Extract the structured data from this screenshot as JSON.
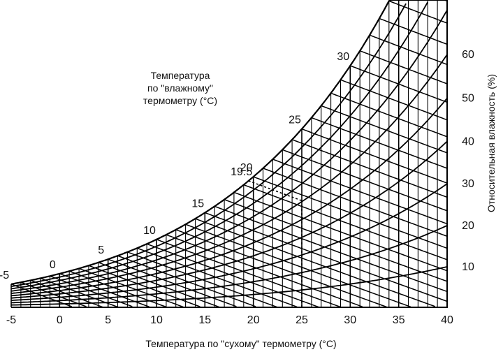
{
  "chart_data": {
    "type": "psychrometric",
    "title": "",
    "xlabel": "Температура по \"сухому\" термометру (°C)",
    "ylabel": "Относительная влажность (%)",
    "wetbulb_label_lines": [
      "Температура",
      "по \"влажному\"",
      "термометру (°C)"
    ],
    "x_ticks": [
      -5,
      0,
      5,
      10,
      15,
      20,
      25,
      30,
      35,
      40
    ],
    "xlim": [
      -5,
      40
    ],
    "rh_ticks": [
      10,
      20,
      30,
      40,
      50,
      60
    ],
    "wetbulb_ticks": [
      -5,
      0,
      5,
      10,
      15,
      19.5,
      20,
      25,
      30
    ],
    "example_point": {
      "dry_bulb": 25,
      "wet_bulb": 19.5
    },
    "ink_color": "#000000"
  }
}
